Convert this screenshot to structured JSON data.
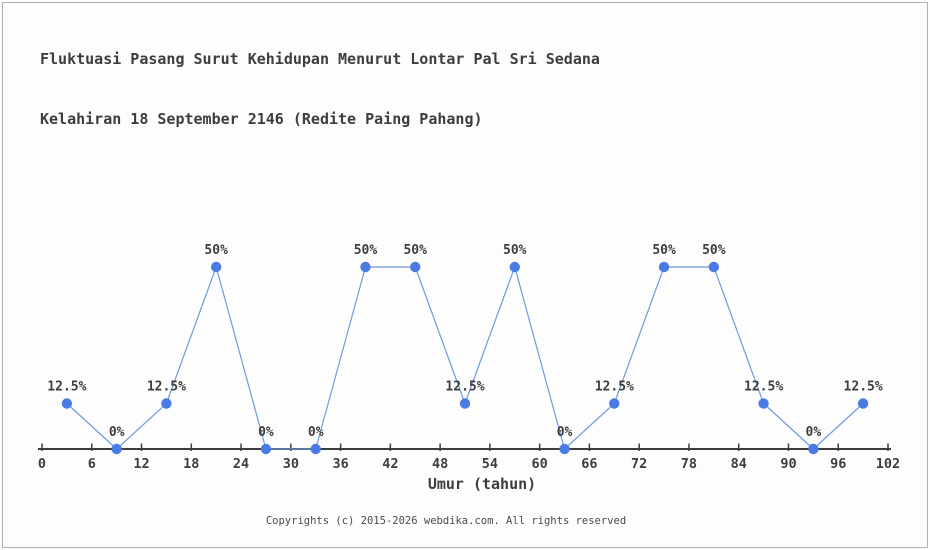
{
  "page": {
    "title_line1": "Fluktuasi Pasang Surut Kehidupan Menurut Lontar Pal Sri Sedana",
    "title_line2": "Kelahiran 18 September 2146 (Redite Paing Pahang)",
    "footer": "Copyrights (c) 2015-2026 webdika.com. All rights reserved"
  },
  "chart_data": {
    "type": "line",
    "title": "Fluktuasi Pasang Surut Kehidupan Menurut Lontar Pal Sri Sedana Kelahiran 18 September 2146 (Redite Paing Pahang)",
    "x": [
      3,
      9,
      15,
      21,
      27,
      33,
      39,
      45,
      51,
      57,
      63,
      69,
      75,
      81,
      87,
      93,
      99
    ],
    "values": [
      12.5,
      0,
      12.5,
      50,
      0,
      0,
      50,
      50,
      12.5,
      50,
      0,
      12.5,
      50,
      50,
      12.5,
      0,
      12.5
    ],
    "point_labels": [
      "12.5%",
      "0%",
      "12.5%",
      "50%",
      "0%",
      "0%",
      "50%",
      "50%",
      "12.5%",
      "50%",
      "0%",
      "12.5%",
      "50%",
      "50%",
      "12.5%",
      "0%",
      "12.5%"
    ],
    "x_ticks": [
      0,
      6,
      12,
      18,
      24,
      30,
      36,
      42,
      48,
      54,
      60,
      66,
      72,
      78,
      84,
      90,
      96,
      102
    ],
    "xlabel": "Umur (tahun)",
    "ylabel": "",
    "xlim": [
      0,
      102
    ],
    "ylim": [
      0,
      55
    ],
    "grid": false,
    "legend": "none",
    "colors": {
      "marker": "#4a7be4",
      "line": "#6f9be0",
      "axis": "#3d3d3d",
      "text": "#3d3d3d"
    }
  }
}
